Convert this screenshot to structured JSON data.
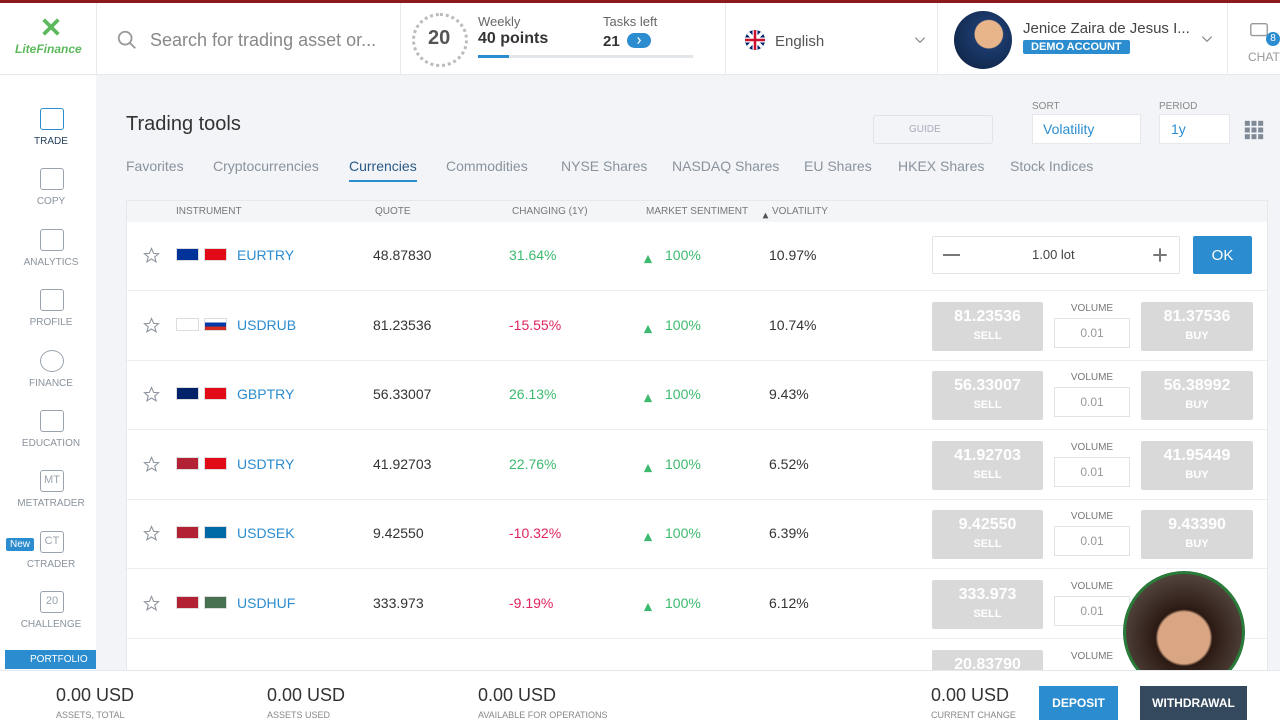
{
  "header": {
    "logo": "LiteFinance",
    "search_placeholder": "Search for trading asset or...",
    "badge_number": "20",
    "weekly_label": "Weekly",
    "weekly_points": "40 points",
    "tasks_label": "Tasks left",
    "tasks_count": "21",
    "language": "English",
    "user_name": "Jenice Zaira de Jesus I...",
    "account_type": "DEMO ACCOUNT",
    "chat_label": "CHAT",
    "chat_badge": "8"
  },
  "sidebar": {
    "items": [
      {
        "label": "TRADE"
      },
      {
        "label": "COPY"
      },
      {
        "label": "ANALYTICS"
      },
      {
        "label": "PROFILE"
      },
      {
        "label": "FINANCE"
      },
      {
        "label": "EDUCATION"
      },
      {
        "label": "METATRADER",
        "icon_text": "MT"
      },
      {
        "label": "CTRADER",
        "icon_text": "CT",
        "tag": "New"
      },
      {
        "label": "CHALLENGE",
        "icon_text": "20"
      }
    ],
    "portfolio": "PORTFOLIO"
  },
  "toolbar": {
    "title": "Trading tools",
    "guide": "GUIDE",
    "sort_label": "SORT",
    "sort_value": "Volatility",
    "period_label": "PERIOD",
    "period_value": "1y"
  },
  "tabs": {
    "items": [
      "Favorites",
      "Cryptocurrencies",
      "Currencies",
      "Commodities",
      "NYSE Shares",
      "NASDAQ Shares",
      "EU Shares",
      "HKEX Shares",
      "Stock Indices"
    ],
    "active": "Currencies"
  },
  "table": {
    "headers": [
      "INSTRUMENT",
      "QUOTE",
      "CHANGING (1Y)",
      "MARKET SENTIMENT",
      "VOLATILITY"
    ],
    "sell_label": "SELL",
    "buy_label": "BUY",
    "volume_label": "VOLUME",
    "lot_value": "1.00 lot",
    "ok_label": "OK",
    "rows": [
      {
        "instrument": "EURTRY",
        "quote": "48.87830",
        "change": "31.64%",
        "sentiment": "100%",
        "volatility": "10.97%"
      },
      {
        "instrument": "USDRUB",
        "quote": "81.23536",
        "change": "-15.55%",
        "sentiment": "100%",
        "volatility": "10.74%",
        "sell": "81.23536",
        "buy": "81.37536",
        "volume": "0.01"
      },
      {
        "instrument": "GBPTRY",
        "quote": "56.33007",
        "change": "26.13%",
        "sentiment": "100%",
        "volatility": "9.43%",
        "sell": "56.33007",
        "buy": "56.38992",
        "volume": "0.01"
      },
      {
        "instrument": "USDTRY",
        "quote": "41.92703",
        "change": "22.76%",
        "sentiment": "100%",
        "volatility": "6.52%",
        "sell": "41.92703",
        "buy": "41.95449",
        "volume": "0.01"
      },
      {
        "instrument": "USDSEK",
        "quote": "9.42550",
        "change": "-10.32%",
        "sentiment": "100%",
        "volatility": "6.39%",
        "sell": "9.42550",
        "buy": "9.43390",
        "volume": "0.01"
      },
      {
        "instrument": "USDHUF",
        "quote": "333.973",
        "change": "-9.19%",
        "sentiment": "100%",
        "volatility": "6.12%",
        "sell": "333.973",
        "volume": "0.01"
      },
      {
        "sell": "20.83790"
      }
    ]
  },
  "footer": {
    "stats": [
      {
        "value": "0.00 USD",
        "label": "ASSETS, TOTAL"
      },
      {
        "value": "0.00 USD",
        "label": "ASSETS USED"
      },
      {
        "value": "0.00 USD",
        "label": "AVAILABLE FOR OPERATIONS"
      },
      {
        "value": "0.00 USD",
        "label": "CURRENT CHANGE"
      }
    ],
    "deposit": "DEPOSIT",
    "withdrawal": "WITHDRAWAL"
  }
}
